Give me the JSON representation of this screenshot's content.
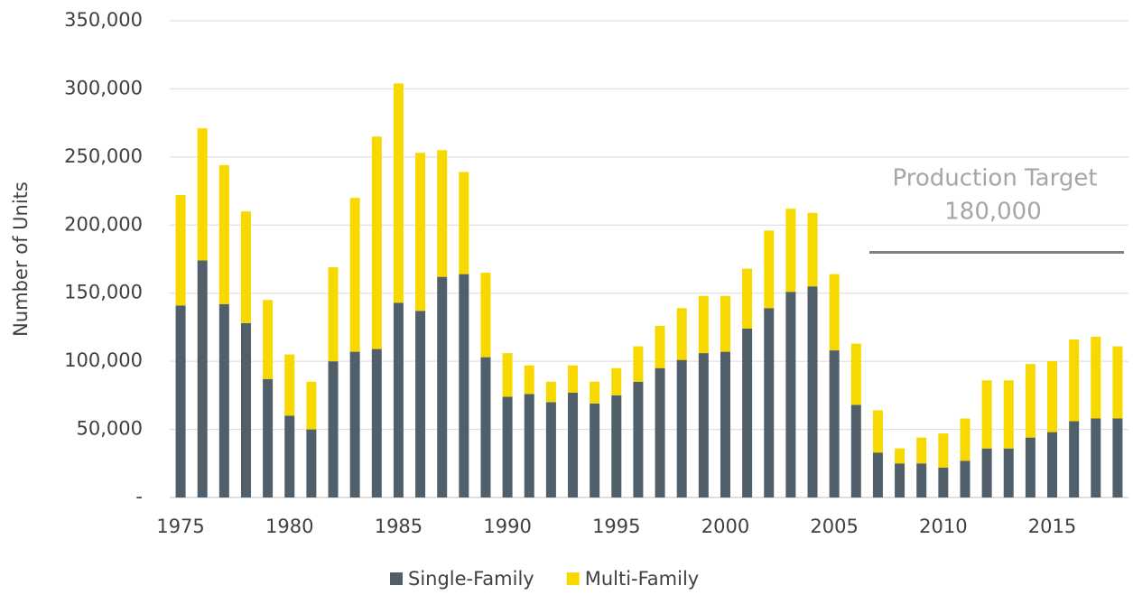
{
  "chart_data": {
    "type": "stacked_bar",
    "y_label": "Number of Units",
    "categories": [
      "1975",
      null,
      null,
      null,
      null,
      "1980",
      null,
      null,
      null,
      null,
      "1985",
      null,
      null,
      null,
      null,
      "1990",
      null,
      null,
      null,
      null,
      "1995",
      null,
      null,
      null,
      null,
      "2000",
      null,
      null,
      null,
      null,
      "2005",
      null,
      null,
      null,
      null,
      "2010",
      null,
      null,
      null,
      null,
      "2015",
      null,
      null,
      null
    ],
    "series": [
      {
        "name": "Single-Family",
        "color": "#505f69",
        "values": [
          141000,
          174000,
          142000,
          128000,
          87000,
          60000,
          50000,
          100000,
          107000,
          109000,
          143000,
          137000,
          162000,
          164000,
          103000,
          74000,
          76000,
          70000,
          77000,
          69000,
          75000,
          85000,
          95000,
          101000,
          106000,
          107000,
          124000,
          139000,
          151000,
          155000,
          108000,
          68000,
          33000,
          25000,
          25000,
          22000,
          27000,
          36000,
          36000,
          44000,
          48000,
          56000,
          58000,
          58000
        ]
      },
      {
        "name": "Multi-Family",
        "color": "#f7d900",
        "values": [
          81000,
          97000,
          102000,
          82000,
          58000,
          45000,
          35000,
          69000,
          113000,
          156000,
          161000,
          116000,
          93000,
          75000,
          62000,
          32000,
          21000,
          15000,
          20000,
          16000,
          20000,
          26000,
          31000,
          38000,
          42000,
          41000,
          44000,
          57000,
          61000,
          54000,
          56000,
          45000,
          31000,
          11000,
          19000,
          25000,
          31000,
          50000,
          50000,
          54000,
          52000,
          60000,
          60000,
          53000
        ]
      }
    ],
    "ylim": [
      0,
      350000
    ],
    "yticks": [
      {
        "value": 0,
        "label": "-"
      },
      {
        "value": 50000,
        "label": "50,000"
      },
      {
        "value": 100000,
        "label": "100,000"
      },
      {
        "value": 150000,
        "label": "150,000"
      },
      {
        "value": 200000,
        "label": "200,000"
      },
      {
        "value": 250000,
        "label": "250,000"
      },
      {
        "value": 300000,
        "label": "300,000"
      },
      {
        "value": 350000,
        "label": "350,000"
      }
    ],
    "grid": true,
    "legend": "bottom",
    "target": {
      "title": "Production Target",
      "value": 180000,
      "label": "180,000",
      "color": "#7f7f7f"
    }
  }
}
